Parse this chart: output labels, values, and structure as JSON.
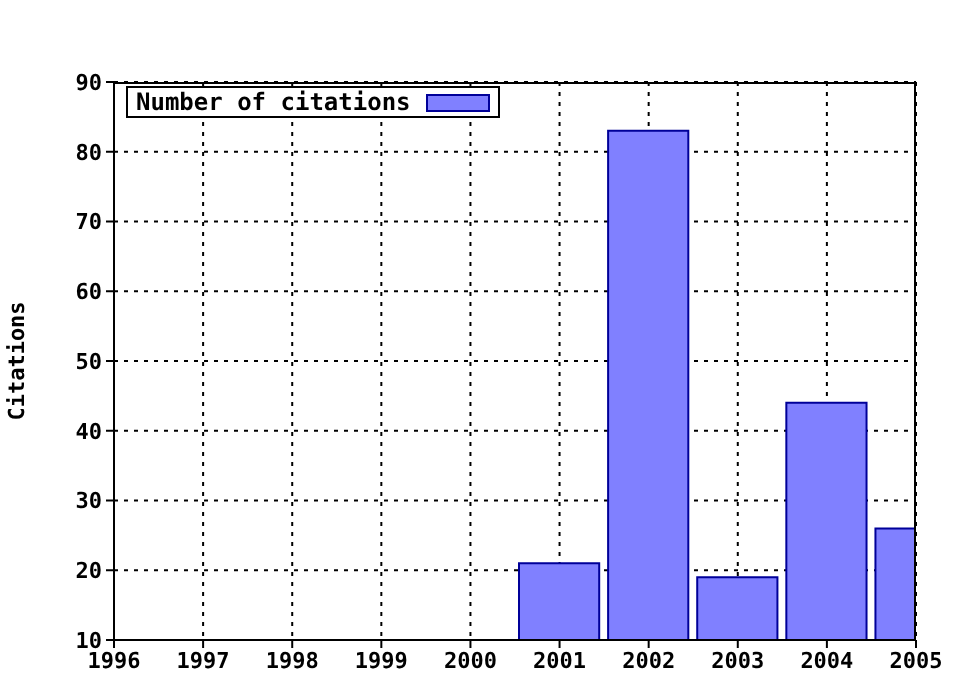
{
  "chart_data": {
    "type": "bar",
    "ylabel": "Citations",
    "x": [
      2001,
      2002,
      2003,
      2004,
      2005
    ],
    "series": [
      {
        "name": "Number of citations",
        "color": "#8080ff",
        "values": [
          21,
          83,
          19,
          44,
          26
        ]
      }
    ],
    "xlim": [
      1996,
      2005
    ],
    "xticks": [
      1996,
      1997,
      1998,
      1999,
      2000,
      2001,
      2002,
      2003,
      2004,
      2005
    ],
    "ylim": [
      10,
      90
    ],
    "yticks": [
      10,
      20,
      30,
      40,
      50,
      60,
      70,
      80,
      90
    ],
    "grid": true,
    "legend": "top left"
  }
}
